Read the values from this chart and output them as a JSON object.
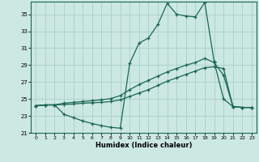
{
  "xlabel": "Humidex (Indice chaleur)",
  "bg_color": "#cce8e2",
  "grid_color": "#aad4cc",
  "line_color": "#1a6655",
  "ylim": [
    21,
    36.5
  ],
  "xlim": [
    -0.5,
    23.5
  ],
  "yticks": [
    21,
    23,
    25,
    27,
    29,
    31,
    33,
    35
  ],
  "xticks": [
    0,
    1,
    2,
    3,
    4,
    5,
    6,
    7,
    8,
    9,
    10,
    11,
    12,
    13,
    14,
    15,
    16,
    17,
    18,
    19,
    20,
    21,
    22,
    23
  ],
  "line1_x": [
    0,
    1,
    2,
    3,
    4,
    5,
    6,
    7,
    8,
    9,
    10,
    11,
    12,
    13,
    14,
    15,
    16,
    17,
    18,
    19,
    20,
    21,
    22,
    23
  ],
  "line1_y": [
    24.2,
    24.3,
    24.3,
    24.35,
    24.4,
    24.5,
    24.55,
    24.6,
    24.7,
    24.9,
    25.3,
    25.7,
    26.1,
    26.6,
    27.1,
    27.5,
    27.9,
    28.3,
    28.7,
    28.8,
    28.6,
    24.1,
    24.0,
    24.0
  ],
  "line2_x": [
    0,
    1,
    2,
    3,
    4,
    5,
    6,
    7,
    8,
    9,
    10,
    11,
    12,
    13,
    14,
    15,
    16,
    17,
    18,
    19,
    20,
    21,
    22,
    23
  ],
  "line2_y": [
    24.2,
    24.3,
    24.3,
    24.5,
    24.6,
    24.7,
    24.8,
    24.9,
    25.05,
    25.4,
    26.1,
    26.7,
    27.2,
    27.7,
    28.2,
    28.6,
    29.0,
    29.3,
    29.8,
    29.3,
    27.8,
    24.1,
    24.0,
    24.0
  ],
  "line3_x": [
    0,
    1,
    2,
    3,
    4,
    5,
    6,
    7,
    8,
    9,
    10,
    11,
    12,
    13,
    14,
    15,
    16,
    17,
    18,
    19,
    20,
    21,
    22,
    23
  ],
  "line3_y": [
    24.2,
    24.3,
    24.3,
    23.2,
    22.8,
    22.4,
    22.1,
    21.85,
    21.65,
    21.55,
    29.2,
    31.6,
    32.2,
    33.8,
    36.3,
    35.0,
    34.8,
    34.7,
    36.4,
    29.4,
    25.0,
    24.1,
    24.0,
    24.0
  ]
}
